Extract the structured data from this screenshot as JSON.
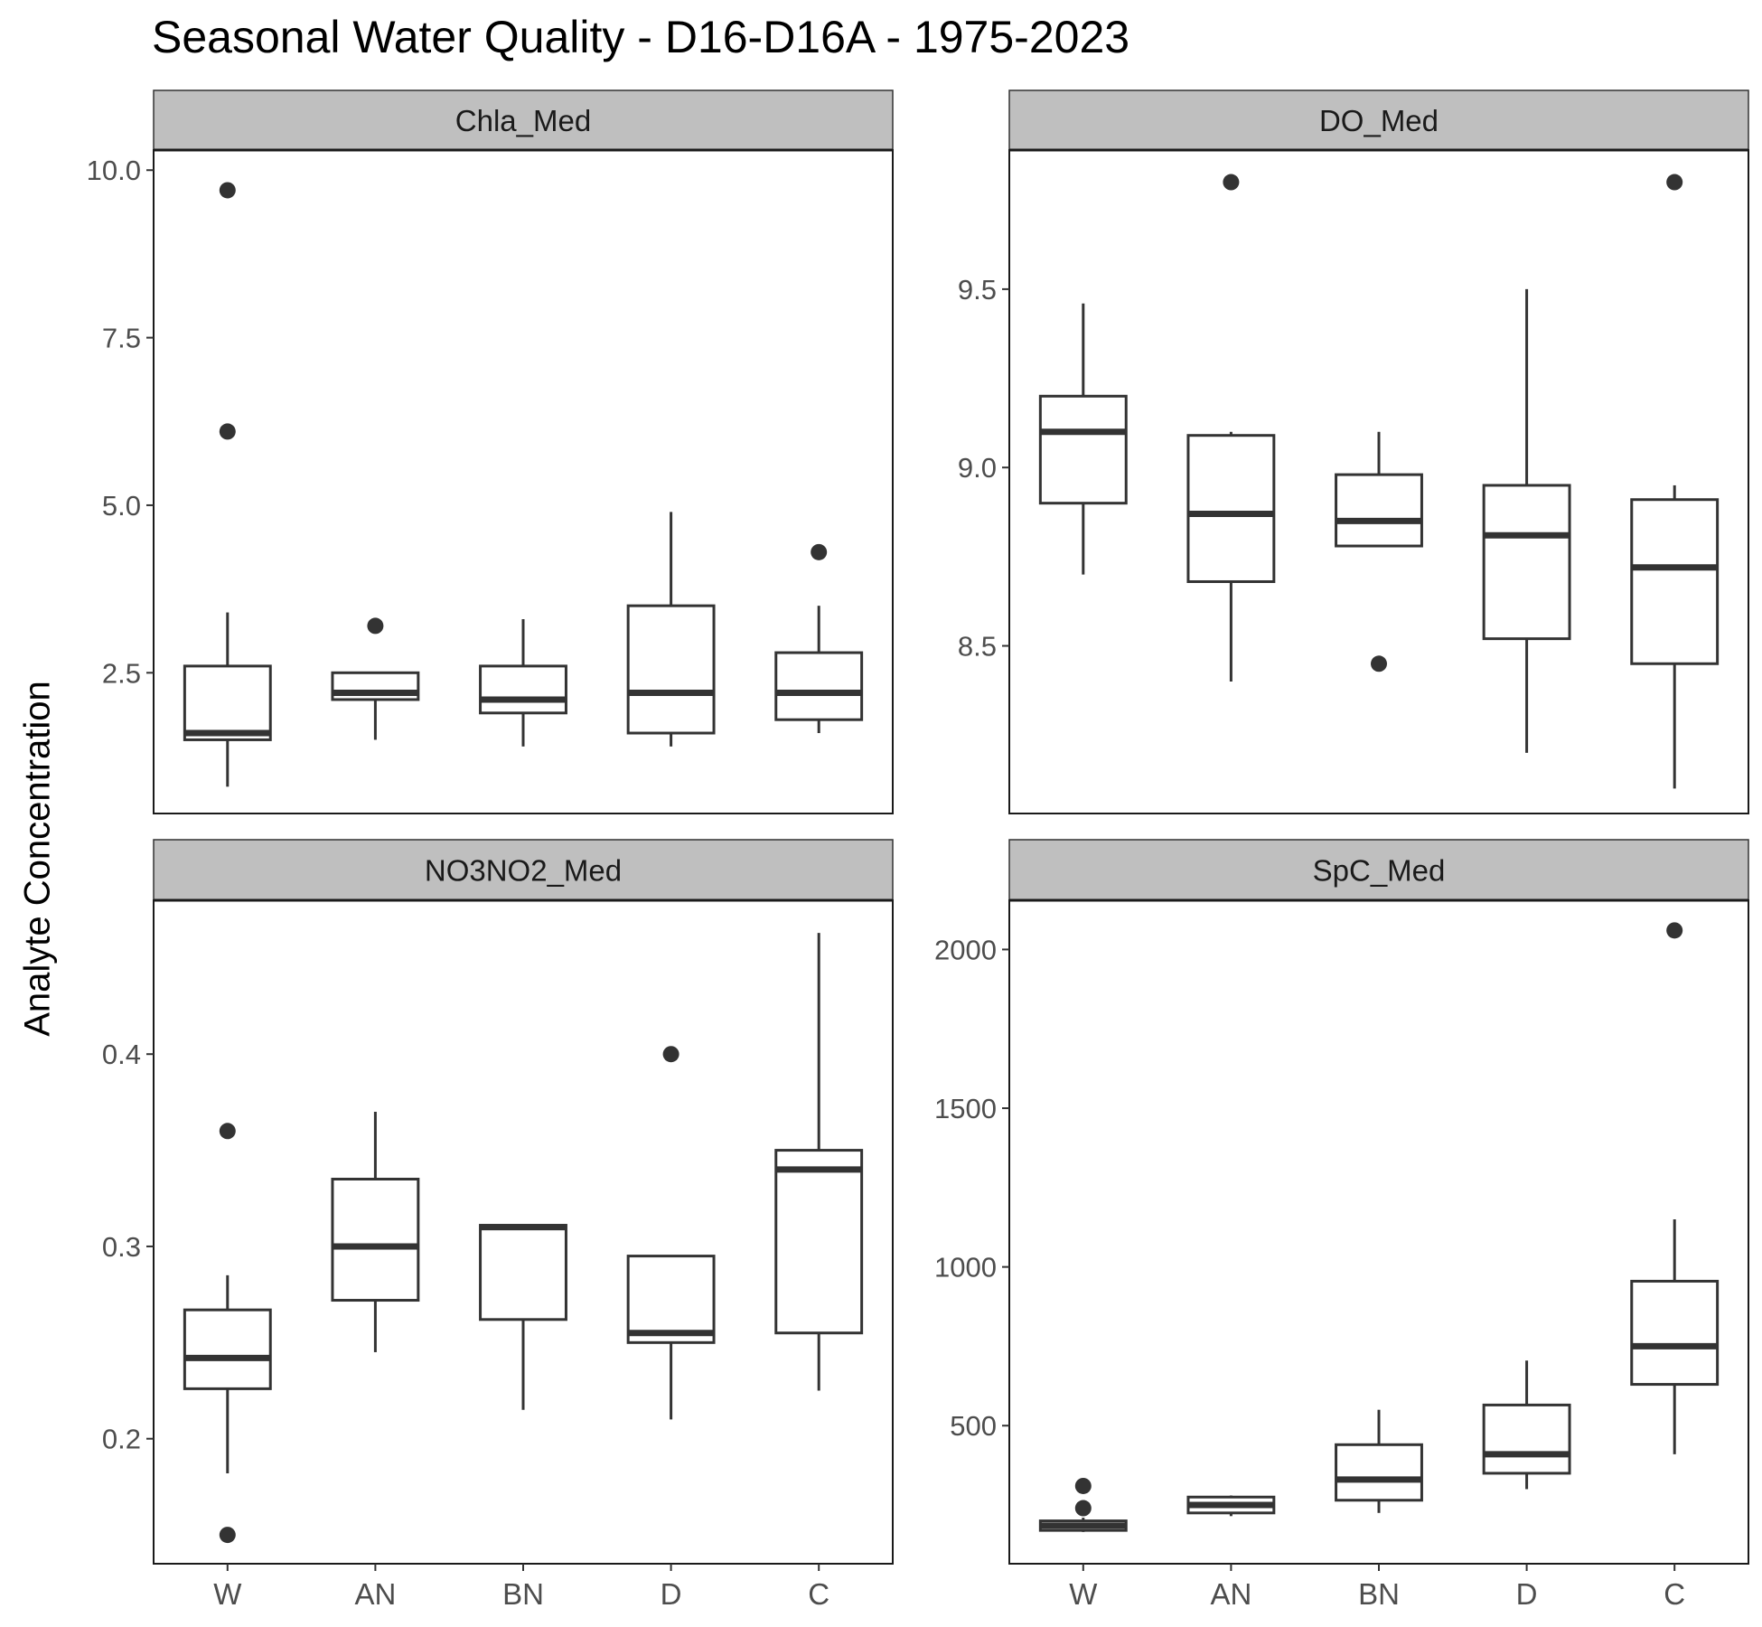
{
  "title": "Seasonal Water Quality - D16-D16A - 1975-2023",
  "ylabel": "Analyte Concentration",
  "colors": {
    "strip": "#bfbfbf",
    "box": "#333333",
    "axis_text": "#4d4d4d"
  },
  "chart_data": [
    {
      "type": "box",
      "facet": "Chla_Med",
      "categories": [
        "W",
        "AN",
        "BN",
        "D",
        "C"
      ],
      "ylim": [
        0.4,
        10.3
      ],
      "yticks": [
        2.5,
        5.0,
        7.5,
        10.0
      ],
      "ytick_labels": [
        "2.5",
        "5.0",
        "7.5",
        "10.0"
      ],
      "show_x_ticks": false,
      "grid": false,
      "boxes": [
        {
          "low": 0.8,
          "q1": 1.5,
          "median": 1.6,
          "q3": 2.6,
          "high": 3.4,
          "outliers": [
            6.1,
            9.7
          ]
        },
        {
          "low": 1.5,
          "q1": 2.1,
          "median": 2.2,
          "q3": 2.5,
          "high": 2.5,
          "outliers": [
            3.2
          ]
        },
        {
          "low": 1.4,
          "q1": 1.9,
          "median": 2.1,
          "q3": 2.6,
          "high": 3.3,
          "outliers": []
        },
        {
          "low": 1.4,
          "q1": 1.6,
          "median": 2.2,
          "q3": 3.5,
          "high": 4.9,
          "outliers": []
        },
        {
          "low": 1.6,
          "q1": 1.8,
          "median": 2.2,
          "q3": 2.8,
          "high": 3.5,
          "outliers": [
            4.3
          ]
        }
      ]
    },
    {
      "type": "box",
      "facet": "DO_Med",
      "categories": [
        "W",
        "AN",
        "BN",
        "D",
        "C"
      ],
      "ylim": [
        8.03,
        9.89
      ],
      "yticks": [
        8.5,
        9.0,
        9.5
      ],
      "ytick_labels": [
        "8.5",
        "9.0",
        "9.5"
      ],
      "show_x_ticks": false,
      "grid": false,
      "boxes": [
        {
          "low": 8.7,
          "q1": 8.9,
          "median": 9.1,
          "q3": 9.2,
          "high": 9.46,
          "outliers": []
        },
        {
          "low": 8.4,
          "q1": 8.68,
          "median": 8.87,
          "q3": 9.09,
          "high": 9.1,
          "outliers": [
            9.8
          ]
        },
        {
          "low": 8.78,
          "q1": 8.78,
          "median": 8.85,
          "q3": 8.98,
          "high": 9.1,
          "outliers": [
            8.45
          ]
        },
        {
          "low": 8.2,
          "q1": 8.52,
          "median": 8.81,
          "q3": 8.95,
          "high": 9.5,
          "outliers": []
        },
        {
          "low": 8.1,
          "q1": 8.45,
          "median": 8.72,
          "q3": 8.91,
          "high": 8.95,
          "outliers": [
            9.8
          ]
        }
      ]
    },
    {
      "type": "box",
      "facet": "NO3NO2_Med",
      "categories": [
        "W",
        "AN",
        "BN",
        "D",
        "C"
      ],
      "ylim": [
        0.135,
        0.48
      ],
      "yticks": [
        0.2,
        0.3,
        0.4
      ],
      "ytick_labels": [
        "0.2",
        "0.3",
        "0.4"
      ],
      "show_x_ticks": true,
      "grid": false,
      "boxes": [
        {
          "low": 0.182,
          "q1": 0.226,
          "median": 0.242,
          "q3": 0.267,
          "high": 0.285,
          "outliers": [
            0.15,
            0.36
          ]
        },
        {
          "low": 0.245,
          "q1": 0.272,
          "median": 0.3,
          "q3": 0.335,
          "high": 0.37,
          "outliers": []
        },
        {
          "low": 0.215,
          "q1": 0.262,
          "median": 0.31,
          "q3": 0.311,
          "high": 0.311,
          "outliers": []
        },
        {
          "low": 0.21,
          "q1": 0.25,
          "median": 0.255,
          "q3": 0.295,
          "high": 0.295,
          "outliers": [
            0.4
          ]
        },
        {
          "low": 0.225,
          "q1": 0.255,
          "median": 0.34,
          "q3": 0.35,
          "high": 0.463,
          "outliers": []
        }
      ]
    },
    {
      "type": "box",
      "facet": "SpC_Med",
      "categories": [
        "W",
        "AN",
        "BN",
        "D",
        "C"
      ],
      "ylim": [
        65,
        2155
      ],
      "yticks": [
        500,
        1000,
        1500,
        2000
      ],
      "ytick_labels": [
        "500",
        "1000",
        "1500",
        "2000"
      ],
      "show_x_ticks": true,
      "grid": false,
      "boxes": [
        {
          "low": 165,
          "q1": 170,
          "median": 185,
          "q3": 200,
          "high": 210,
          "outliers": [
            240,
            310
          ]
        },
        {
          "low": 215,
          "q1": 225,
          "median": 250,
          "q3": 275,
          "high": 280,
          "outliers": []
        },
        {
          "low": 225,
          "q1": 265,
          "median": 330,
          "q3": 440,
          "high": 550,
          "outliers": []
        },
        {
          "low": 300,
          "q1": 350,
          "median": 410,
          "q3": 565,
          "high": 705,
          "outliers": []
        },
        {
          "low": 410,
          "q1": 630,
          "median": 750,
          "q3": 955,
          "high": 1150,
          "outliers": [
            2060
          ]
        }
      ]
    }
  ]
}
